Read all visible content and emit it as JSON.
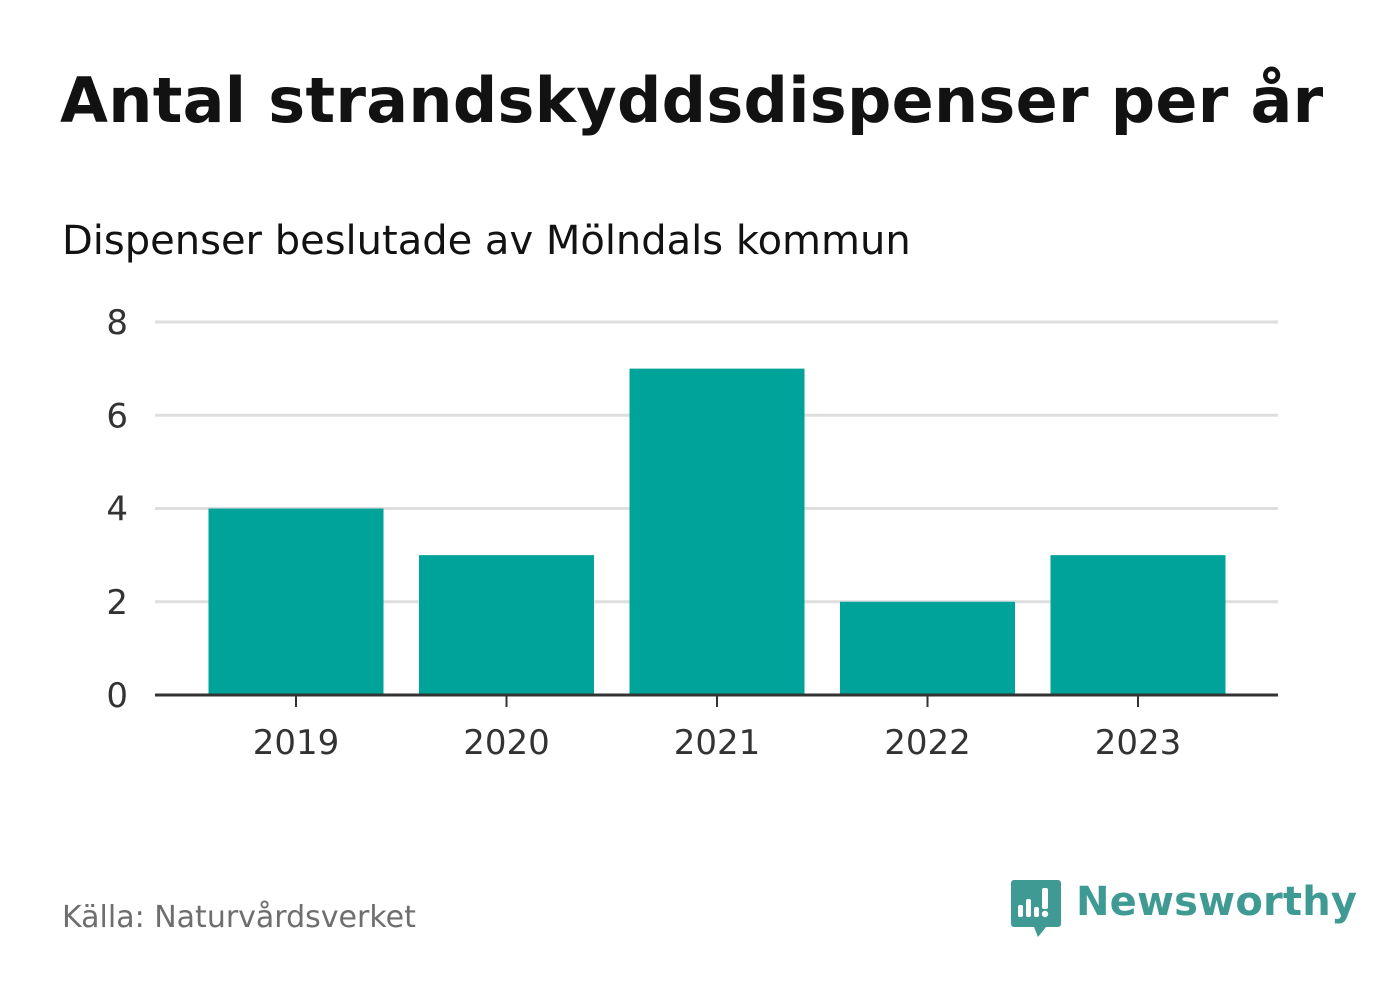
{
  "header": {
    "title": "Antal strandskyddsdispenser per år",
    "subtitle": "Dispenser beslutade av Mölndals kommun"
  },
  "footer": {
    "source": "Källa: Naturvårdsverket",
    "brand": "Newsworthy"
  },
  "colors": {
    "bar": "#00a39a",
    "gridline": "#dedede",
    "axis": "#333333",
    "brand": "#3f9a94"
  },
  "chart_data": {
    "type": "bar",
    "categories": [
      "2019",
      "2020",
      "2021",
      "2022",
      "2023"
    ],
    "values": [
      4,
      3,
      7,
      2,
      3
    ],
    "title": "Antal strandskyddsdispenser per år",
    "subtitle": "Dispenser beslutade av Mölndals kommun",
    "xlabel": "",
    "ylabel": "",
    "ylim": [
      0,
      8
    ],
    "yticks": [
      0,
      2,
      4,
      6,
      8
    ],
    "grid": true,
    "legend": "none"
  }
}
